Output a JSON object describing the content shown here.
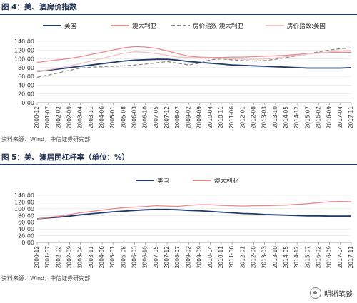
{
  "figures": [
    {
      "title": "图 4：美、澳房价指数",
      "source": "资料来源：Wind，中信证券研究部"
    },
    {
      "title": "图 5：美、澳居民杠杆率（单位：%）",
      "source": "资料来源：Wind，中信证券研究部"
    }
  ],
  "watermark": {
    "text": "明晰笔谈",
    "icon": "wechat-icon"
  },
  "chart_data": [
    {
      "type": "line",
      "title": "图 4：美、澳房价指数",
      "ylim": [
        0,
        140
      ],
      "yticks": [
        "0.00",
        "20.00",
        "40.00",
        "60.00",
        "80.00",
        "100.00",
        "120.00",
        "140.00"
      ],
      "categories": [
        "2000-12",
        "2001-07",
        "2002-02",
        "2002-09",
        "2003-04",
        "2003-11",
        "2004-06",
        "2005-01",
        "2005-08",
        "2006-03",
        "2006-10",
        "2007-05",
        "2007-12",
        "2008-07",
        "2009-02",
        "2009-09",
        "2010-04",
        "2010-11",
        "2011-06",
        "2012-01",
        "2012-08",
        "2013-03",
        "2013-10",
        "2014-05",
        "2014-12",
        "2015-07",
        "2016-02",
        "2016-09",
        "2017-04",
        "2017-11"
      ],
      "legend_position": "top",
      "grid": true,
      "series": [
        {
          "name": "美国",
          "color": "#1f3a6b",
          "dash": "solid",
          "values": [
            72,
            74,
            77,
            80,
            83,
            86,
            89,
            92,
            95,
            97,
            98,
            99,
            99,
            97,
            94,
            92,
            90,
            88,
            86,
            85,
            84,
            83,
            82,
            81,
            80,
            79,
            79,
            79,
            79,
            80
          ]
        },
        {
          "name": "澳大利亚",
          "color": "#e8898c",
          "dash": "solid",
          "values": [
            92,
            95,
            98,
            101,
            105,
            110,
            115,
            120,
            125,
            128,
            127,
            124,
            118,
            112,
            106,
            104,
            103,
            103,
            104,
            104,
            105,
            106,
            107,
            108,
            110,
            112,
            114,
            115,
            115,
            115
          ]
        },
        {
          "name": "房价指数:澳大利亚",
          "color": "#8a8a8a",
          "dash": "dashed",
          "values": [
            58,
            63,
            68,
            74,
            79,
            81,
            82,
            83,
            84,
            86,
            88,
            91,
            94,
            90,
            86,
            90,
            98,
            100,
            98,
            96,
            95,
            96,
            99,
            103,
            107,
            111,
            116,
            120,
            123,
            125
          ]
        },
        {
          "name": "房价指数:美国",
          "color": "#f2c2c4",
          "dash": "solid",
          "values": [
            72,
            75,
            79,
            84,
            89,
            95,
            101,
            107,
            113,
            116,
            115,
            112,
            108,
            104,
            103,
            102,
            102,
            101,
            100,
            99,
            99,
            100,
            102,
            105,
            108,
            111,
            113,
            116,
            118,
            119
          ]
        }
      ]
    },
    {
      "type": "line",
      "title": "图 5：美、澳居民杠杆率（单位：%）",
      "ylim": [
        0,
        140
      ],
      "yticks": [
        "0.00",
        "20.00",
        "40.00",
        "60.00",
        "80.00",
        "100.00",
        "120.00",
        "140.00"
      ],
      "categories": [
        "2000-12",
        "2001-07",
        "2002-02",
        "2002-09",
        "2003-04",
        "2003-11",
        "2004-06",
        "2005-01",
        "2005-08",
        "2006-03",
        "2006-10",
        "2007-05",
        "2007-12",
        "2008-07",
        "2009-02",
        "2009-09",
        "2010-04",
        "2010-11",
        "2011-06",
        "2012-01",
        "2012-08",
        "2013-03",
        "2013-10",
        "2014-05",
        "2014-12",
        "2015-07",
        "2016-02",
        "2016-09",
        "2017-04",
        "2017-11"
      ],
      "legend_position": "top",
      "grid": true,
      "series": [
        {
          "name": "美国",
          "color": "#1f3a6b",
          "dash": "solid",
          "values": [
            70,
            73,
            75,
            78,
            82,
            85,
            88,
            91,
            93,
            95,
            97,
            98,
            98,
            97,
            95,
            94,
            92,
            90,
            88,
            86,
            85,
            83,
            82,
            81,
            80,
            79,
            79,
            78,
            78,
            78
          ]
        },
        {
          "name": "澳大利亚",
          "color": "#e8898c",
          "dash": "solid",
          "values": [
            70,
            74,
            78,
            83,
            88,
            92,
            96,
            100,
            103,
            105,
            107,
            109,
            108,
            107,
            110,
            112,
            112,
            110,
            109,
            108,
            109,
            109,
            110,
            111,
            113,
            115,
            118,
            121,
            122,
            121
          ]
        }
      ]
    }
  ]
}
